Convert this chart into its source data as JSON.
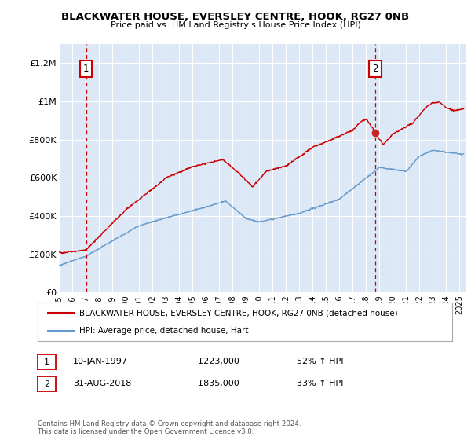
{
  "title": "BLACKWATER HOUSE, EVERSLEY CENTRE, HOOK, RG27 0NB",
  "subtitle": "Price paid vs. HM Land Registry's House Price Index (HPI)",
  "ylabel_ticks": [
    "£0",
    "£200K",
    "£400K",
    "£600K",
    "£800K",
    "£1M",
    "£1.2M"
  ],
  "ytick_values": [
    0,
    200000,
    400000,
    600000,
    800000,
    1000000,
    1200000
  ],
  "ylim": [
    0,
    1300000
  ],
  "xlim_start": 1995.0,
  "xlim_end": 2025.5,
  "point1_x": 1997.03,
  "point1_y": 223000,
  "point2_x": 2018.67,
  "point2_y": 835000,
  "point1_label": "10-JAN-1997",
  "point1_price": "£223,000",
  "point1_hpi": "52% ↑ HPI",
  "point2_label": "31-AUG-2018",
  "point2_price": "£835,000",
  "point2_hpi": "33% ↑ HPI",
  "legend_line1": "BLACKWATER HOUSE, EVERSLEY CENTRE, HOOK, RG27 0NB (detached house)",
  "legend_line2": "HPI: Average price, detached house, Hart",
  "footer": "Contains HM Land Registry data © Crown copyright and database right 2024.\nThis data is licensed under the Open Government Licence v3.0.",
  "red_color": "#cc0000",
  "blue_color": "#6699cc",
  "bg_color": "#dce8f5",
  "grid_color": "#ffffff",
  "annotation_box_color": "#cc0000",
  "fig_bg": "#f5f5f5"
}
